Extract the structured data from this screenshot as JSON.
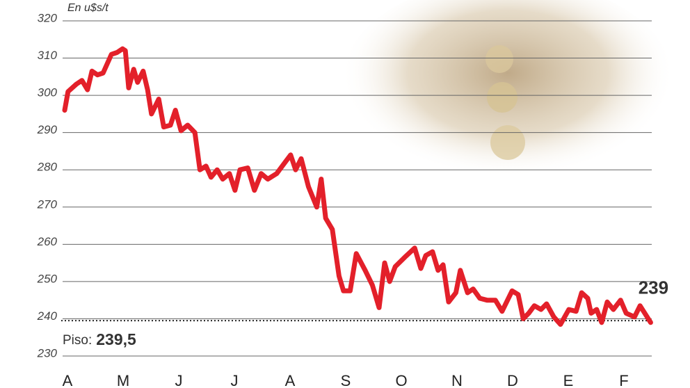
{
  "chart_data": {
    "type": "line",
    "y_label": "En u$s/t",
    "color": "#e3202a",
    "grid": true,
    "ylim": [
      230,
      320
    ],
    "yticks": [
      230,
      240,
      250,
      260,
      270,
      280,
      290,
      300,
      310,
      320
    ],
    "xlim": [
      -0.05,
      10.5
    ],
    "xticks": [
      {
        "value": 0,
        "label": "A"
      },
      {
        "value": 1,
        "label": "M"
      },
      {
        "value": 2,
        "label": "J"
      },
      {
        "value": 3,
        "label": "J"
      },
      {
        "value": 4,
        "label": "A"
      },
      {
        "value": 5,
        "label": "S"
      },
      {
        "value": 6,
        "label": "O"
      },
      {
        "value": 7,
        "label": "N"
      },
      {
        "value": 8,
        "label": "D"
      },
      {
        "value": 9,
        "label": "E"
      },
      {
        "value": 10,
        "label": "F"
      }
    ],
    "x": [
      -0.05,
      0.01,
      0.16,
      0.26,
      0.36,
      0.44,
      0.54,
      0.64,
      0.79,
      0.89,
      0.99,
      1.04,
      1.1,
      1.19,
      1.26,
      1.36,
      1.44,
      1.51,
      1.64,
      1.73,
      1.85,
      1.94,
      2.04,
      2.16,
      2.29,
      2.38,
      2.49,
      2.58,
      2.69,
      2.79,
      2.91,
      3.01,
      3.1,
      3.24,
      3.36,
      3.48,
      3.6,
      3.76,
      3.91,
      4.01,
      4.1,
      4.2,
      4.33,
      4.48,
      4.56,
      4.64,
      4.76,
      4.88,
      4.96,
      5.08,
      5.19,
      5.35,
      5.48,
      5.6,
      5.7,
      5.79,
      5.89,
      6.06,
      6.24,
      6.35,
      6.44,
      6.56,
      6.66,
      6.75,
      6.85,
      6.98,
      7.06,
      7.19,
      7.29,
      7.41,
      7.54,
      7.69,
      7.81,
      7.99,
      8.1,
      8.19,
      8.29,
      8.39,
      8.51,
      8.61,
      8.74,
      8.86,
      9.01,
      9.14,
      9.24,
      9.35,
      9.41,
      9.51,
      9.6,
      9.7,
      9.81,
      9.94,
      10.04,
      10.19,
      10.29,
      10.48
    ],
    "values": [
      296,
      301,
      303,
      304,
      301.5,
      306.5,
      305.5,
      306,
      311,
      311.5,
      312.5,
      312,
      302,
      307,
      303.5,
      306.5,
      301.5,
      295,
      299,
      291.5,
      292,
      296,
      290.5,
      292,
      290,
      280,
      281,
      278,
      280,
      277.5,
      279,
      274.5,
      280,
      280.5,
      274.5,
      279,
      277.5,
      279,
      282,
      284,
      280,
      283,
      275.5,
      270,
      277.5,
      267,
      264,
      251.5,
      247.5,
      247.5,
      257.5,
      253,
      249,
      243,
      255,
      250,
      254,
      256.5,
      259,
      253.5,
      257,
      258,
      253,
      254.5,
      244.5,
      247,
      253,
      247,
      248,
      245.5,
      245,
      245,
      242,
      247.5,
      246.5,
      240,
      241.5,
      243.5,
      242.5,
      244,
      240.5,
      238.5,
      242.5,
      242,
      247,
      245.5,
      241.5,
      242.5,
      239,
      244.5,
      242.5,
      245,
      241.5,
      240.5,
      243.5,
      239
    ],
    "value_labels": [
      null,
      null,
      null,
      null,
      null,
      null,
      null,
      null,
      null,
      null,
      null,
      null,
      null,
      null,
      null,
      null,
      null,
      null,
      null,
      null,
      null,
      null,
      null,
      null,
      null,
      null,
      null,
      null,
      null,
      null,
      null,
      null,
      null,
      null,
      null,
      null,
      null,
      null,
      null,
      null,
      null,
      null,
      null,
      null,
      null,
      null,
      null,
      null,
      null,
      null,
      null,
      null,
      null,
      null,
      null,
      null,
      null,
      null,
      null,
      null,
      null,
      null,
      null,
      null,
      null,
      null,
      null,
      null,
      null,
      null,
      null,
      null,
      null,
      null,
      null,
      null,
      null,
      null,
      null,
      null,
      null,
      null,
      null,
      null,
      null,
      null,
      null,
      null,
      null,
      null,
      null,
      null,
      null,
      null,
      null,
      "239"
    ],
    "reference_line": {
      "value": 239.5,
      "label": "Piso:",
      "value_label": "239,5"
    }
  }
}
